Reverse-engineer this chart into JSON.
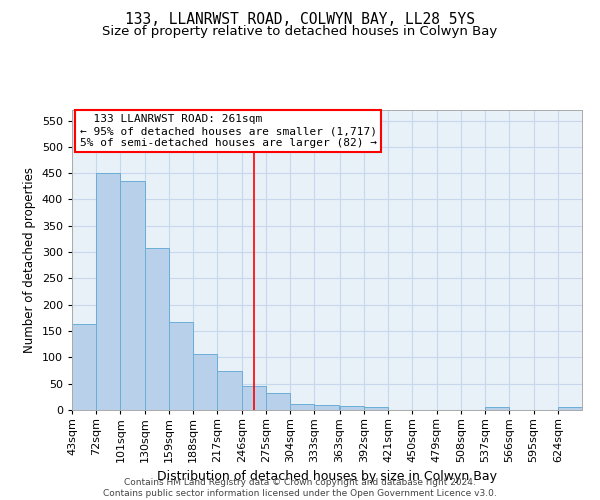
{
  "title": "133, LLANRWST ROAD, COLWYN BAY, LL28 5YS",
  "subtitle": "Size of property relative to detached houses in Colwyn Bay",
  "xlabel": "Distribution of detached houses by size in Colwyn Bay",
  "ylabel": "Number of detached properties",
  "footer_line1": "Contains HM Land Registry data © Crown copyright and database right 2024.",
  "footer_line2": "Contains public sector information licensed under the Open Government Licence v3.0.",
  "annotation_line1": "133 LLANRWST ROAD: 261sqm",
  "annotation_line2": "← 95% of detached houses are smaller (1,717)",
  "annotation_line3": "5% of semi-detached houses are larger (82) →",
  "bar_color": "#b8d0ea",
  "bar_edge_color": "#6aaed6",
  "reference_line_color": "red",
  "reference_line_x": 261,
  "background_color": "#e8f0f8",
  "categories": [
    43,
    72,
    101,
    130,
    159,
    188,
    217,
    246,
    275,
    304,
    333,
    363,
    392,
    421,
    450,
    479,
    508,
    537,
    566,
    595,
    624
  ],
  "bin_width": 29,
  "values": [
    163,
    450,
    436,
    307,
    168,
    107,
    74,
    45,
    33,
    11,
    9,
    8,
    5,
    0,
    0,
    0,
    0,
    5,
    0,
    0,
    5
  ],
  "ylim": [
    0,
    570
  ],
  "yticks": [
    0,
    50,
    100,
    150,
    200,
    250,
    300,
    350,
    400,
    450,
    500,
    550
  ],
  "grid_color": "#c8d8ec",
  "title_fontsize": 10.5,
  "subtitle_fontsize": 9.5,
  "xlabel_fontsize": 9,
  "ylabel_fontsize": 8.5,
  "tick_fontsize": 8,
  "annotation_fontsize": 8,
  "annotation_box_edgecolor": "red",
  "footer_fontsize": 6.5
}
